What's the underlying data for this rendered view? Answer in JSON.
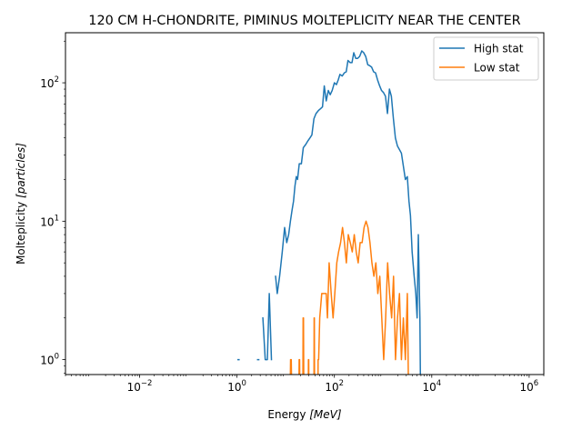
{
  "chart_data": {
    "type": "line",
    "title": "120 CM H-CHONDRITE, PIMINUS MOLTEPLICITY NEAR THE CENTER",
    "xlabel": {
      "prefix": "Energy ",
      "math": "[MeV]"
    },
    "ylabel": {
      "prefix": "Molteplicity ",
      "math": "[particles]"
    },
    "x_scale": "log",
    "y_scale": "log",
    "xlim": [
      0.0003,
      2000000
    ],
    "ylim": [
      0.78,
      230
    ],
    "grid": false,
    "legend_position": "top-right",
    "x_ticks": [
      {
        "value": 0.01,
        "base": "10",
        "exp": "−2"
      },
      {
        "value": 1,
        "base": "10",
        "exp": "0"
      },
      {
        "value": 100,
        "base": "10",
        "exp": "2"
      },
      {
        "value": 10000,
        "base": "10",
        "exp": "4"
      },
      {
        "value": 1000000,
        "base": "10",
        "exp": "6"
      }
    ],
    "y_ticks": [
      {
        "value": 1,
        "base": "10",
        "exp": "0"
      },
      {
        "value": 10,
        "base": "10",
        "exp": "1"
      },
      {
        "value": 100,
        "base": "10",
        "exp": "2"
      }
    ],
    "series": [
      {
        "name": "High stat",
        "color": "#1f77b4",
        "points": [
          [
            1.05,
            1
          ],
          [
            1.1,
            1
          ],
          [
            1.12,
            null
          ],
          [
            2.65,
            1
          ],
          [
            2.8,
            1
          ],
          [
            2.9,
            null
          ],
          [
            3.4,
            2
          ],
          [
            3.8,
            1
          ],
          [
            4.2,
            1
          ],
          [
            4.6,
            3
          ],
          [
            5.1,
            1
          ],
          [
            5.4,
            null
          ],
          [
            6.2,
            4
          ],
          [
            6.7,
            3
          ],
          [
            7.5,
            4
          ],
          [
            8.5,
            6
          ],
          [
            9.5,
            9
          ],
          [
            10.5,
            7
          ],
          [
            11.5,
            8
          ],
          [
            12.5,
            10
          ],
          [
            13.5,
            12
          ],
          [
            14.5,
            14
          ],
          [
            15.5,
            18
          ],
          [
            16.5,
            21
          ],
          [
            17.5,
            20
          ],
          [
            19,
            26
          ],
          [
            21,
            26
          ],
          [
            23,
            34
          ],
          [
            26,
            36
          ],
          [
            28.5,
            38
          ],
          [
            31.5,
            40
          ],
          [
            34.5,
            42
          ],
          [
            38,
            55
          ],
          [
            42,
            60
          ],
          [
            47,
            63
          ],
          [
            52,
            65
          ],
          [
            57,
            67
          ],
          [
            62,
            95
          ],
          [
            68,
            74
          ],
          [
            75,
            88
          ],
          [
            82,
            82
          ],
          [
            90,
            88
          ],
          [
            100,
            100
          ],
          [
            110,
            97
          ],
          [
            120,
            105
          ],
          [
            130,
            115
          ],
          [
            145,
            112
          ],
          [
            160,
            118
          ],
          [
            175,
            120
          ],
          [
            190,
            145
          ],
          [
            210,
            140
          ],
          [
            230,
            140
          ],
          [
            250,
            165
          ],
          [
            275,
            150
          ],
          [
            300,
            150
          ],
          [
            330,
            155
          ],
          [
            365,
            170
          ],
          [
            400,
            165
          ],
          [
            440,
            155
          ],
          [
            485,
            135
          ],
          [
            530,
            133
          ],
          [
            580,
            130
          ],
          [
            640,
            120
          ],
          [
            700,
            118
          ],
          [
            770,
            105
          ],
          [
            850,
            95
          ],
          [
            930,
            88
          ],
          [
            1020,
            85
          ],
          [
            1120,
            80
          ],
          [
            1230,
            60
          ],
          [
            1350,
            90
          ],
          [
            1480,
            80
          ],
          [
            1630,
            55
          ],
          [
            1790,
            40
          ],
          [
            1970,
            35
          ],
          [
            2160,
            33
          ],
          [
            2380,
            31
          ],
          [
            2610,
            25
          ],
          [
            2870,
            20
          ],
          [
            3150,
            21
          ],
          [
            3400,
            14
          ],
          [
            3650,
            11
          ],
          [
            3950,
            6
          ],
          [
            4350,
            4
          ],
          [
            4700,
            3
          ],
          [
            5000,
            2
          ],
          [
            5300,
            8
          ],
          [
            5700,
            2
          ],
          [
            5900,
            0.5
          ]
        ]
      },
      {
        "name": "Low stat",
        "color": "#ff7f0e",
        "points": [
          [
            12.3,
            0.5
          ],
          [
            12.6,
            1
          ],
          [
            13,
            1
          ],
          [
            13.4,
            0.5
          ],
          [
            13.6,
            null
          ],
          [
            18.6,
            0.5
          ],
          [
            18.9,
            1
          ],
          [
            19.3,
            1
          ],
          [
            19.6,
            0.5
          ],
          [
            19.8,
            null
          ],
          [
            22.5,
            0.5
          ],
          [
            22.8,
            2
          ],
          [
            23.2,
            2
          ],
          [
            23.6,
            0.5
          ],
          [
            23.8,
            null
          ],
          [
            29,
            0.5
          ],
          [
            29.3,
            1
          ],
          [
            29.7,
            1
          ],
          [
            30,
            0.5
          ],
          [
            30.2,
            null
          ],
          [
            38,
            0.5
          ],
          [
            38.4,
            2
          ],
          [
            38.8,
            2
          ],
          [
            39.2,
            0.5
          ],
          [
            39.4,
            null
          ],
          [
            46,
            0.5
          ],
          [
            46.3,
            1
          ],
          [
            47.5,
            1
          ],
          [
            50,
            2
          ],
          [
            55,
            3
          ],
          [
            62,
            3
          ],
          [
            68,
            3
          ],
          [
            72,
            2
          ],
          [
            78,
            5
          ],
          [
            86,
            3
          ],
          [
            94,
            2
          ],
          [
            102,
            3
          ],
          [
            112,
            5
          ],
          [
            122,
            6
          ],
          [
            134,
            7
          ],
          [
            147,
            9
          ],
          [
            161,
            7
          ],
          [
            176,
            5
          ],
          [
            193,
            8
          ],
          [
            212,
            7
          ],
          [
            233,
            6
          ],
          [
            256,
            8
          ],
          [
            281,
            6
          ],
          [
            308,
            5
          ],
          [
            338,
            7
          ],
          [
            371,
            7
          ],
          [
            407,
            9
          ],
          [
            447,
            10
          ],
          [
            490,
            9
          ],
          [
            538,
            7
          ],
          [
            590,
            5
          ],
          [
            648,
            4
          ],
          [
            711,
            5
          ],
          [
            780,
            3
          ],
          [
            856,
            4
          ],
          [
            940,
            2
          ],
          [
            1030,
            1
          ],
          [
            1130,
            2
          ],
          [
            1240,
            5
          ],
          [
            1360,
            3
          ],
          [
            1500,
            2
          ],
          [
            1640,
            4
          ],
          [
            1800,
            1
          ],
          [
            1980,
            2
          ],
          [
            2170,
            3
          ],
          [
            2380,
            1
          ],
          [
            2610,
            2
          ],
          [
            2870,
            1
          ],
          [
            3150,
            3
          ],
          [
            3350,
            0.5
          ]
        ]
      }
    ]
  }
}
